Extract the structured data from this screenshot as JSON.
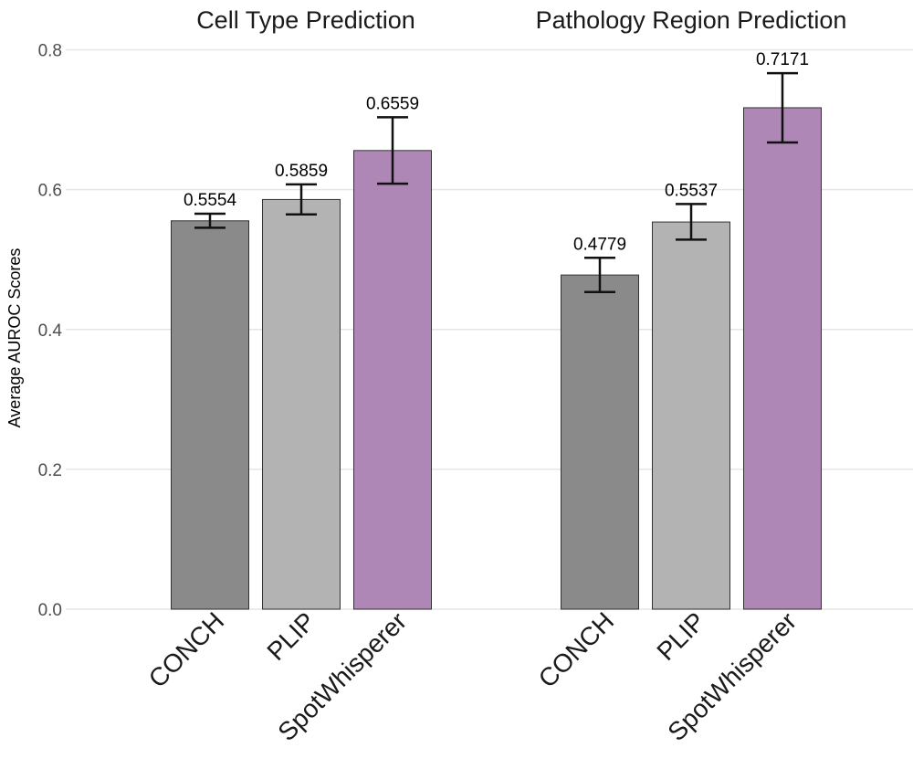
{
  "chart_data": {
    "type": "bar",
    "ylabel": "Average AUROC Scores",
    "xlabel": "",
    "ylim": [
      0,
      0.8
    ],
    "yticks": [
      "0.0",
      "0.2",
      "0.4",
      "0.6",
      "0.8"
    ],
    "grid": true,
    "colors": {
      "CONCH": "#8a8a8a",
      "PLIP": "#b3b3b3",
      "SpotWhisperer": "#af87b7"
    },
    "panels": [
      {
        "title": "Cell Type Prediction",
        "categories": [
          "CONCH",
          "PLIP",
          "SpotWhisperer"
        ],
        "values": [
          0.5554,
          0.5859,
          0.6559
        ],
        "value_labels": [
          "0.5554",
          "0.5859",
          "0.6559"
        ],
        "error_low": [
          0.5455,
          0.5645,
          0.6085
        ],
        "error_high": [
          0.5655,
          0.6075,
          0.7035
        ]
      },
      {
        "title": "Pathology Region Prediction",
        "categories": [
          "CONCH",
          "PLIP",
          "SpotWhisperer"
        ],
        "values": [
          0.4779,
          0.5537,
          0.7171
        ],
        "value_labels": [
          "0.4779",
          "0.5537",
          "0.7171"
        ],
        "error_low": [
          0.4535,
          0.5285,
          0.6675
        ],
        "error_high": [
          0.5025,
          0.5795,
          0.7665
        ]
      }
    ]
  }
}
